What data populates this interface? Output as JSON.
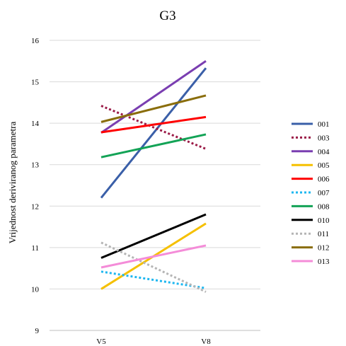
{
  "chart_data": {
    "type": "line",
    "title": "G3",
    "xlabel": "",
    "ylabel": "Vrijednost deriviranog parametra",
    "categories": [
      "V5",
      "V8"
    ],
    "ylim": [
      9,
      16
    ],
    "yticks": [
      9,
      10,
      11,
      12,
      13,
      14,
      15,
      16
    ],
    "grid": true,
    "legend_position": "right",
    "series": [
      {
        "name": "001",
        "values": [
          12.2,
          15.33
        ],
        "color": "#3A5FA8",
        "style": "solid"
      },
      {
        "name": "003",
        "values": [
          14.42,
          13.38
        ],
        "color": "#9B1B47",
        "style": "dotted"
      },
      {
        "name": "004",
        "values": [
          13.77,
          15.5
        ],
        "color": "#7A3EB1",
        "style": "solid"
      },
      {
        "name": "005",
        "values": [
          10.0,
          11.58
        ],
        "color": "#F5C000",
        "style": "solid"
      },
      {
        "name": "006",
        "values": [
          13.78,
          14.15
        ],
        "color": "#FF0000",
        "style": "solid"
      },
      {
        "name": "007",
        "values": [
          10.42,
          10.02
        ],
        "color": "#1EB7F0",
        "style": "dotted"
      },
      {
        "name": "008",
        "values": [
          13.18,
          13.73
        ],
        "color": "#13A356",
        "style": "solid"
      },
      {
        "name": "010",
        "values": [
          10.75,
          11.8
        ],
        "color": "#000000",
        "style": "solid"
      },
      {
        "name": "011",
        "values": [
          11.12,
          9.93
        ],
        "color": "#B5B5B5",
        "style": "dotted"
      },
      {
        "name": "012",
        "values": [
          14.03,
          14.67
        ],
        "color": "#8A6D0B",
        "style": "solid"
      },
      {
        "name": "013",
        "values": [
          10.52,
          11.05
        ],
        "color": "#F48CD8",
        "style": "solid"
      }
    ]
  }
}
